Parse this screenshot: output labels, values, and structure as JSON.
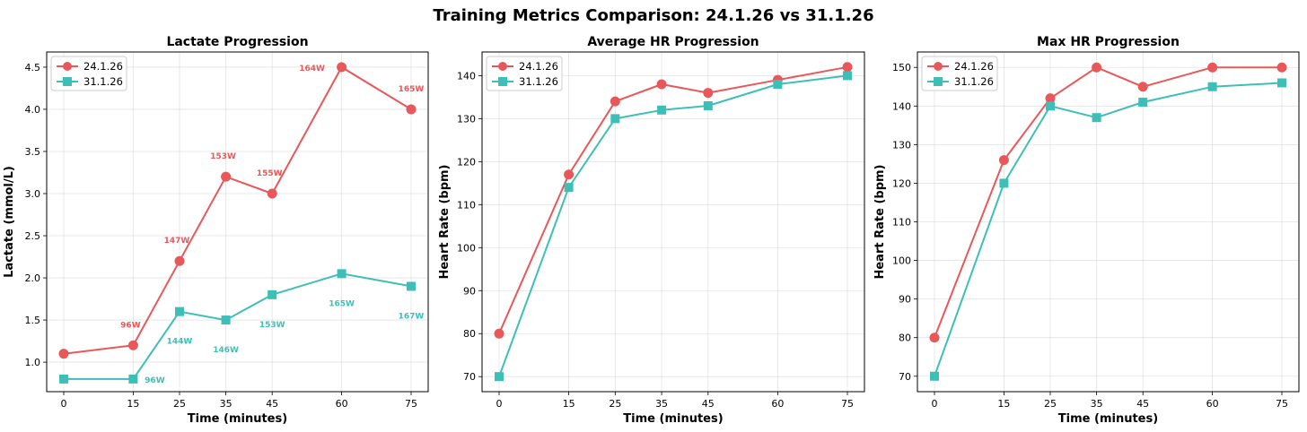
{
  "figure_title": "Training Metrics Comparison: 24.1.26 vs 31.1.26",
  "colors": {
    "series_a": "#e8585a",
    "series_b": "#3dbfb8"
  },
  "chart_data": [
    {
      "type": "line",
      "title": "Lactate Progression",
      "xlabel": "Time (minutes)",
      "ylabel": "Lactate (mmol/L)",
      "x": [
        0,
        15,
        25,
        35,
        45,
        60,
        75
      ],
      "xticks": [
        "0",
        "15",
        "25",
        "35",
        "45",
        "60",
        "75"
      ],
      "yticks": [
        "1.0",
        "1.5",
        "2.0",
        "2.5",
        "3.0",
        "3.5",
        "4.0",
        "4.5"
      ],
      "ytick_values": [
        1.0,
        1.5,
        2.0,
        2.5,
        3.0,
        3.5,
        4.0,
        4.5
      ],
      "ylim": [
        0.65,
        4.68
      ],
      "legend": "top-left",
      "grid": true,
      "series": [
        {
          "name": "24.1.26",
          "marker": "circle",
          "color": "#e8585a",
          "values": [
            1.1,
            1.2,
            2.2,
            3.2,
            3.0,
            4.5,
            4.0
          ],
          "labels": [
            "",
            "96W",
            "147W",
            "153W",
            "155W",
            "164W",
            "165W"
          ]
        },
        {
          "name": "31.1.26",
          "marker": "square",
          "color": "#3dbfb8",
          "values": [
            0.8,
            0.8,
            1.6,
            1.5,
            1.8,
            2.05,
            1.9
          ],
          "labels": [
            "",
            "96W",
            "144W",
            "146W",
            "153W",
            "165W",
            "167W"
          ]
        }
      ]
    },
    {
      "type": "line",
      "title": "Average HR Progression",
      "xlabel": "Time (minutes)",
      "ylabel": "Heart Rate (bpm)",
      "x": [
        0,
        15,
        25,
        35,
        45,
        60,
        75
      ],
      "xticks": [
        "0",
        "15",
        "25",
        "35",
        "45",
        "60",
        "75"
      ],
      "yticks": [
        "70",
        "80",
        "90",
        "100",
        "110",
        "120",
        "130",
        "140"
      ],
      "ytick_values": [
        70,
        80,
        90,
        100,
        110,
        120,
        130,
        140
      ],
      "ylim": [
        66.5,
        145.5
      ],
      "legend": "top-left",
      "grid": true,
      "series": [
        {
          "name": "24.1.26",
          "marker": "circle",
          "color": "#e8585a",
          "values": [
            80,
            117,
            134,
            138,
            136,
            139,
            142
          ]
        },
        {
          "name": "31.1.26",
          "marker": "square",
          "color": "#3dbfb8",
          "values": [
            70,
            114,
            130,
            132,
            133,
            138,
            140
          ]
        }
      ]
    },
    {
      "type": "line",
      "title": "Max HR Progression",
      "xlabel": "Time (minutes)",
      "ylabel": "Heart Rate (bpm)",
      "x": [
        0,
        15,
        25,
        35,
        45,
        60,
        75
      ],
      "xticks": [
        "0",
        "15",
        "25",
        "35",
        "45",
        "60",
        "75"
      ],
      "yticks": [
        "70",
        "80",
        "90",
        "100",
        "110",
        "120",
        "130",
        "140",
        "150"
      ],
      "ytick_values": [
        70,
        80,
        90,
        100,
        110,
        120,
        130,
        140,
        150
      ],
      "ylim": [
        66,
        154
      ],
      "legend": "top-left",
      "grid": true,
      "series": [
        {
          "name": "24.1.26",
          "marker": "circle",
          "color": "#e8585a",
          "values": [
            80,
            126,
            142,
            150,
            145,
            150,
            150
          ]
        },
        {
          "name": "31.1.26",
          "marker": "square",
          "color": "#3dbfb8",
          "values": [
            70,
            120,
            140,
            137,
            141,
            145,
            146
          ]
        }
      ]
    }
  ]
}
